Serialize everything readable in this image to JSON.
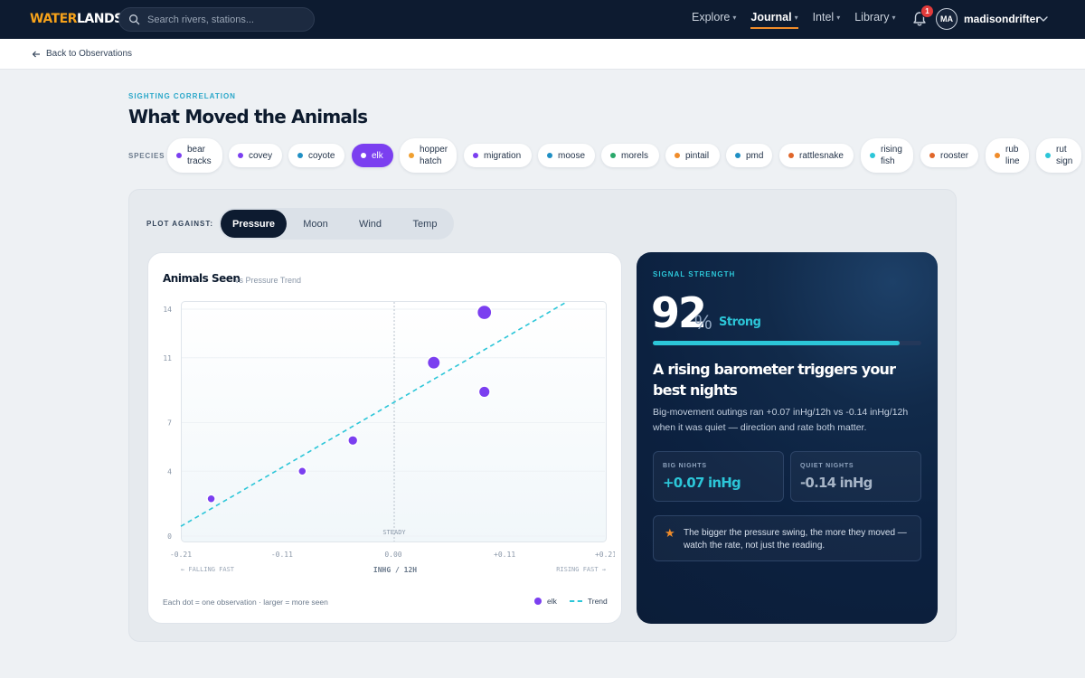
{
  "brand": {
    "logo_a": "WATER",
    "logo_b": "LANDS"
  },
  "search": {
    "placeholder": "Search rivers, stations..."
  },
  "nav": {
    "items": [
      {
        "label": "Explore",
        "active": false
      },
      {
        "label": "Journal",
        "active": true
      },
      {
        "label": "Intel",
        "active": false
      },
      {
        "label": "Library",
        "active": false
      }
    ],
    "notifications": "1",
    "avatar_initials": "MA",
    "username": "madisondrifter"
  },
  "back_link": "Back to Observations",
  "header": {
    "eyebrow": "SIGHTING CORRELATION",
    "title": "What Moved the Animals"
  },
  "species": {
    "label": "SPECIES",
    "chips": [
      {
        "label": "bear tracks",
        "color": "#7b3ff0",
        "selected": false
      },
      {
        "label": "covey",
        "color": "#7b3ff0",
        "selected": false
      },
      {
        "label": "coyote",
        "color": "#1f8fc4",
        "selected": false
      },
      {
        "label": "elk",
        "color": "#7b3ff0",
        "selected": true
      },
      {
        "label": "hopper hatch",
        "color": "#f0a030",
        "selected": false
      },
      {
        "label": "migration",
        "color": "#7b3ff0",
        "selected": false
      },
      {
        "label": "moose",
        "color": "#1f8fc4",
        "selected": false
      },
      {
        "label": "morels",
        "color": "#2aa86a",
        "selected": false
      },
      {
        "label": "pintail",
        "color": "#f08c2a",
        "selected": false
      },
      {
        "label": "pmd",
        "color": "#1f8fc4",
        "selected": false
      },
      {
        "label": "rattlesnake",
        "color": "#e0662a",
        "selected": false
      },
      {
        "label": "rising fish",
        "color": "#2cc6d8",
        "selected": false
      },
      {
        "label": "rooster",
        "color": "#e0662a",
        "selected": false
      },
      {
        "label": "rub line",
        "color": "#f08c2a",
        "selected": false
      },
      {
        "label": "rut sign",
        "color": "#2cc6d8",
        "selected": false
      }
    ]
  },
  "plot_against": {
    "label": "PLOT AGAINST:",
    "options": [
      "Pressure",
      "Moon",
      "Wind",
      "Temp"
    ],
    "active": "Pressure"
  },
  "chart": {
    "title": "Animals Seen",
    "subtitle": "vs Pressure Trend",
    "footnote": "Each dot = one observation · larger = more seen",
    "legend_series": "elk",
    "legend_trend": "Trend"
  },
  "chart_data": {
    "type": "scatter",
    "title": "Animals Seen",
    "subtitle": "vs Pressure Trend",
    "xlabel": "INHG / 12H",
    "x_ticks": [
      "-0.21",
      "-0.11",
      "0.00",
      "+0.11",
      "+0.21"
    ],
    "y_ticks": [
      "0",
      "4",
      "7",
      "11",
      "14"
    ],
    "xlim": [
      -0.21,
      0.21
    ],
    "ylim": [
      0,
      14
    ],
    "x_edge_labels": [
      "← FALLING FAST",
      "RISING FAST →"
    ],
    "center_label": "STEADY",
    "series": [
      {
        "name": "elk",
        "color": "#7b3ff0",
        "points": [
          {
            "x": -0.18,
            "y": 2.3,
            "size": 1
          },
          {
            "x": -0.09,
            "y": 4.0,
            "size": 1
          },
          {
            "x": -0.04,
            "y": 5.9,
            "size": 1.2
          },
          {
            "x": 0.04,
            "y": 10.7,
            "size": 1.6
          },
          {
            "x": 0.09,
            "y": 8.9,
            "size": 1.4
          },
          {
            "x": 0.09,
            "y": 13.8,
            "size": 1.8
          }
        ]
      }
    ],
    "trend": {
      "name": "Trend",
      "color": "#2cc6d8",
      "from": {
        "x": -0.21,
        "y": 0.6
      },
      "to": {
        "x": 0.17,
        "y": 14.4
      }
    }
  },
  "signal": {
    "eyebrow": "SIGNAL STRENGTH",
    "percent": "92",
    "percent_sign": "%",
    "percent_value": 0.92,
    "strength": "Strong",
    "headline": "A rising barometer triggers your best nights",
    "body": "Big-movement outings ran +0.07 inHg/12h vs -0.14 inHg/12h when it was quiet — direction and rate both matter.",
    "big_label": "BIG NIGHTS",
    "big_value": "+0.07 inHg",
    "quiet_label": "QUIET NIGHTS",
    "quiet_value": "-0.14 inHg",
    "tip": "The bigger the pressure swing, the more they moved — watch the rate, not just the reading.",
    "colors": {
      "accent": "#2cc6d8",
      "muted": "#8fa4bf",
      "tip_icon": "#f08c2a"
    }
  }
}
